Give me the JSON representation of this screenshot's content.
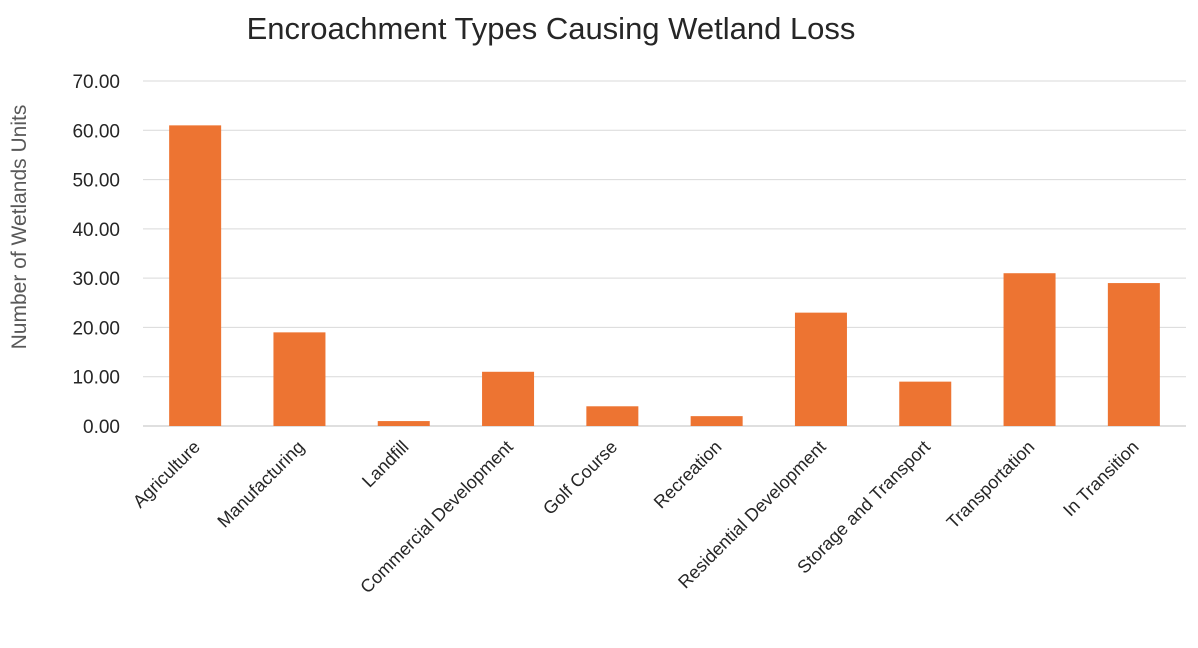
{
  "chart_data": {
    "type": "bar",
    "title": "Encroachment Types Causing Wetland Loss",
    "xlabel": "",
    "ylabel": "Number of Wetlands Units",
    "ylim": [
      0,
      70
    ],
    "yticks": [
      0,
      10,
      20,
      30,
      40,
      50,
      60,
      70
    ],
    "ytick_labels": [
      "0.00",
      "10.00",
      "20.00",
      "30.00",
      "40.00",
      "50.00",
      "60.00",
      "70.00"
    ],
    "categories": [
      "Agriculture",
      "Manufacturing",
      "Landfill",
      "Commercial Development",
      "Golf Course",
      "Recreation",
      "Residential Development",
      "Storage and Transport",
      "Transportation",
      "In Transition"
    ],
    "values": [
      61,
      19,
      1,
      11,
      4,
      2,
      23,
      9,
      31,
      29
    ],
    "grid": true,
    "legend": "none",
    "bar_color": "#ED7432"
  }
}
